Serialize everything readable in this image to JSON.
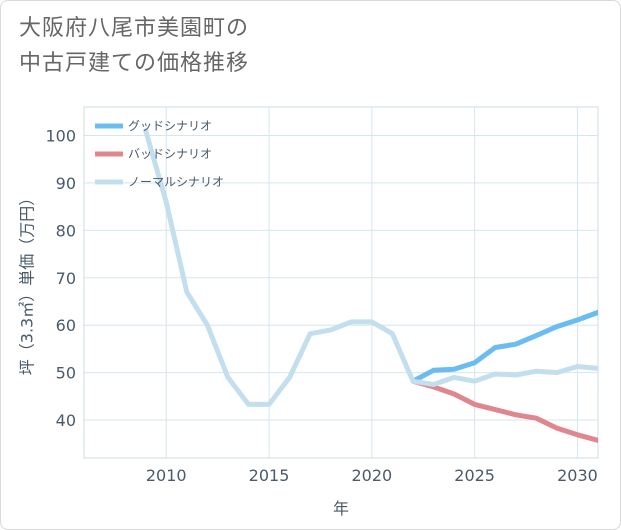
{
  "title": {
    "line1": "大阪府八尾市美園町の",
    "line2": "中古戸建ての価格推移"
  },
  "chart_data": {
    "type": "line",
    "xlabel": "年",
    "ylabel": "坪（3.3㎡）単価（万円）",
    "xlim": [
      2006,
      2031
    ],
    "ylim": [
      32,
      106
    ],
    "xticks": [
      2010,
      2015,
      2020,
      2025,
      2030
    ],
    "yticks": [
      40,
      50,
      60,
      70,
      80,
      90,
      100
    ],
    "grid": true,
    "legend_position": "top-left",
    "series": [
      {
        "name": "グッドシナリオ",
        "color": "#6bbcf0",
        "x": [
          2022,
          2023,
          2024,
          2025,
          2026,
          2027,
          2028,
          2029,
          2030,
          2031
        ],
        "values": [
          48.2,
          50.5,
          50.7,
          52.1,
          55.3,
          56.0,
          57.8,
          59.7,
          61.1,
          62.7
        ]
      },
      {
        "name": "バッドシナリオ",
        "color": "#e0868f",
        "x": [
          2022,
          2023,
          2024,
          2025,
          2026,
          2027,
          2028,
          2029,
          2030,
          2031
        ],
        "values": [
          48.2,
          47.0,
          45.5,
          43.3,
          42.2,
          41.1,
          40.4,
          38.3,
          36.9,
          35.7
        ]
      },
      {
        "name": "ノーマルシナリオ",
        "color": "#c3dfee",
        "x": [
          2009,
          2010,
          2011,
          2012,
          2013,
          2014,
          2015,
          2016,
          2017,
          2018,
          2019,
          2020,
          2021,
          2022,
          2023,
          2024,
          2025,
          2026,
          2027,
          2028,
          2029,
          2030,
          2031
        ],
        "values": [
          101,
          86,
          67,
          60,
          49,
          43.3,
          43.3,
          49,
          58.2,
          59,
          60.7,
          60.7,
          58.2,
          48.2,
          47.5,
          49.0,
          48.2,
          49.7,
          49.5,
          50.3,
          50.0,
          51.3,
          50.9
        ]
      }
    ]
  }
}
